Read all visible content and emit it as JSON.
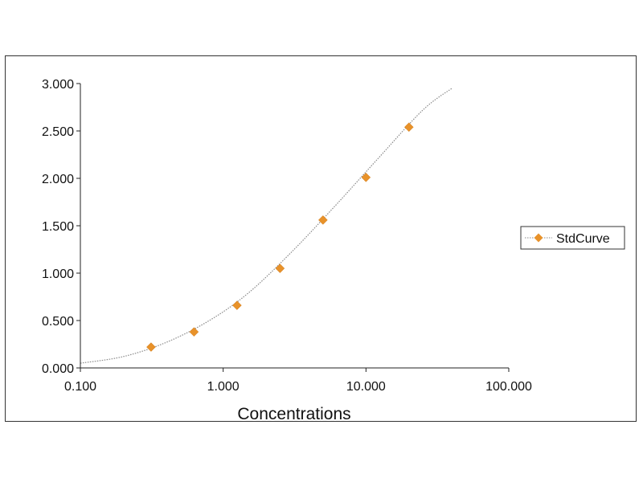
{
  "chart_data": {
    "type": "scatter",
    "title": "",
    "xlabel": "Concentrations",
    "ylabel": "",
    "x_scale": "log",
    "xlim": [
      0.1,
      100
    ],
    "ylim": [
      0,
      3
    ],
    "x_ticks": [
      0.1,
      1,
      10,
      100
    ],
    "x_tick_labels": [
      "0.100",
      "1.000",
      "10.000",
      "100.000"
    ],
    "y_ticks": [
      0,
      0.5,
      1,
      1.5,
      2,
      2.5,
      3
    ],
    "y_tick_labels": [
      "0.000",
      "0.500",
      "1.000",
      "1.500",
      "2.000",
      "2.500",
      "3.000"
    ],
    "grid": false,
    "legend_position": "right",
    "series": [
      {
        "name": "StdCurve",
        "color": "#e8922a",
        "marker": "diamond",
        "line_style": "dotted",
        "x": [
          0.3125,
          0.625,
          1.25,
          2.5,
          5,
          10,
          20
        ],
        "y": [
          0.22,
          0.38,
          0.66,
          1.05,
          1.56,
          2.01,
          2.54
        ],
        "fit_curve": {
          "x": [
            0.1,
            0.2,
            0.4,
            0.8,
            1.5,
            3,
            6,
            12,
            25,
            40
          ],
          "y": [
            0.05,
            0.12,
            0.27,
            0.5,
            0.79,
            1.22,
            1.7,
            2.2,
            2.72,
            2.95
          ]
        }
      }
    ]
  }
}
